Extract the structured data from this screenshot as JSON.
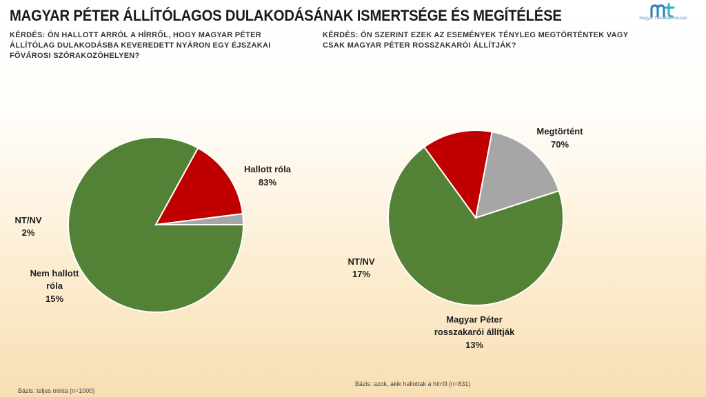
{
  "header": {
    "title": "MAGYAR PÉTER ÁLLÍTÓLAGOS DULAKODÁSÁNAK ISMERTSÉGE ÉS MEGÍTÉLÉSE",
    "logo_text": "Magyar Társadalomkutató"
  },
  "questions": {
    "left": "KÉRDÉS: ÖN HALLOTT ARRÓL A HÍRRŐL, HOGY MAGYAR PÉTER ÁLLÍTÓLAG DULAKODÁSBA KEVEREDETT NYÁRON EGY ÉJSZAKAI FŐVÁROSI SZÓRAKOZÓHELYEN?",
    "right": "KÉRDÉS: ÖN SZERINT EZEK AZ ESEMÉNYEK TÉNYLEG MEGTÖRTÉNTEK VAGY CSAK MAGYAR PÉTER ROSSZAKARÓI ÁLLÍTJÁK?"
  },
  "footnotes": {
    "left": "Bázis: teljes minta (n=1000)",
    "right": "Bázis: azok, akik hallottak a hírről (n=831)"
  },
  "chart_data": [
    {
      "type": "pie",
      "slices": [
        {
          "label": "Hallott róla",
          "value": 83,
          "value_label": "83%",
          "color": "#538135"
        },
        {
          "label": "Nem hallott róla",
          "value": 15,
          "value_label": "15%",
          "color": "#c00000"
        },
        {
          "label": "NT/NV",
          "value": 2,
          "value_label": "2%",
          "color": "#a6a6a6"
        }
      ]
    },
    {
      "type": "pie",
      "slices": [
        {
          "label": "Megtörtént",
          "value": 70,
          "value_label": "70%",
          "color": "#538135"
        },
        {
          "label": "Magyar Péter rosszakarói állítják",
          "value": 13,
          "value_label": "13%",
          "color": "#c00000"
        },
        {
          "label": "NT/NV",
          "value": 17,
          "value_label": "17%",
          "color": "#a6a6a6"
        }
      ]
    }
  ]
}
